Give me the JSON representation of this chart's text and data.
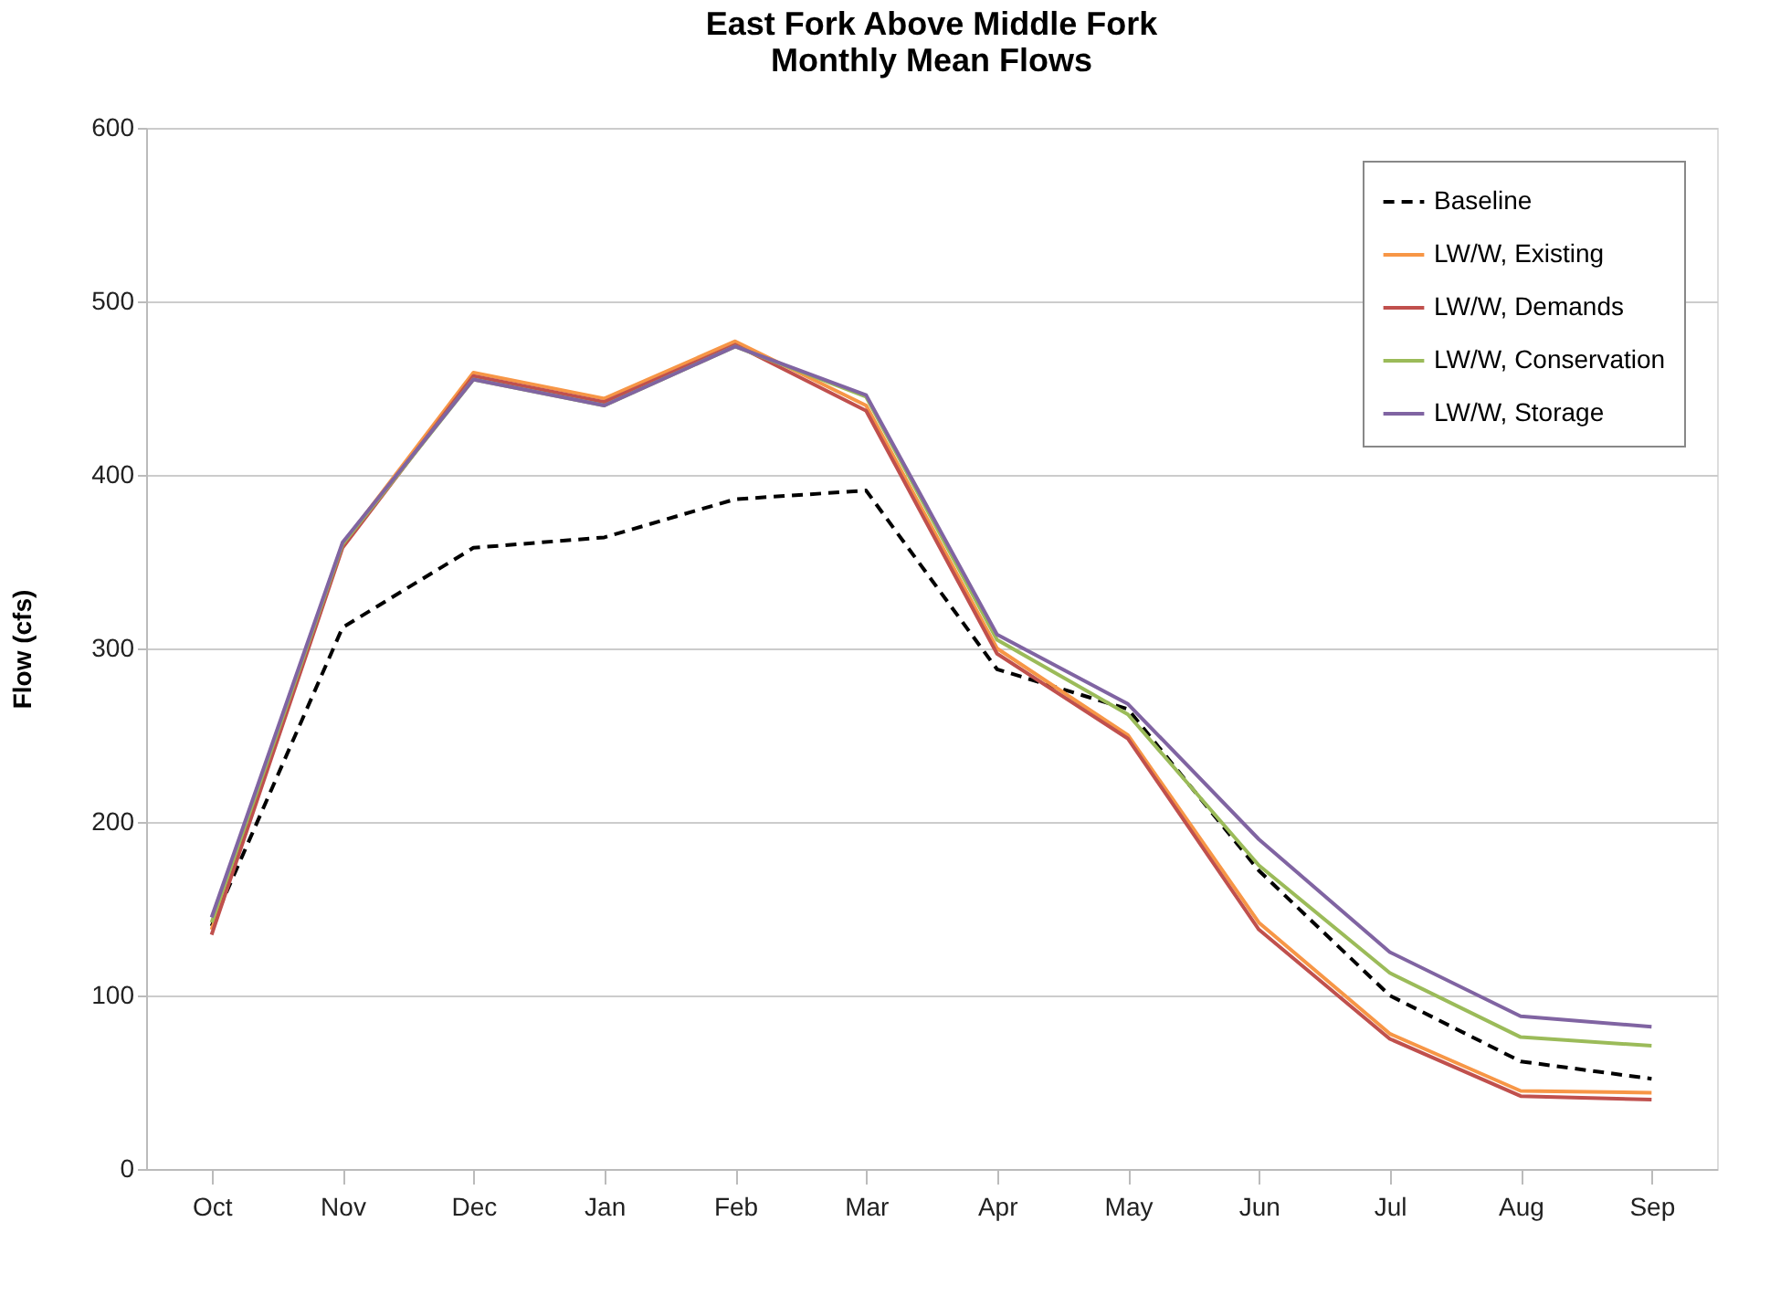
{
  "chart_data": {
    "type": "line",
    "title": [
      "East Fork Above Middle Fork",
      "Monthly Mean Flows"
    ],
    "ylabel": "Flow (cfs)",
    "categories": [
      "Oct",
      "Nov",
      "Dec",
      "Jan",
      "Feb",
      "Mar",
      "Apr",
      "May",
      "Jun",
      "Jul",
      "Aug",
      "Sep"
    ],
    "ylim": [
      0,
      600
    ],
    "yticks": [
      0,
      100,
      200,
      300,
      400,
      500,
      600
    ],
    "grid": "y",
    "legend": "top right",
    "marker": "none",
    "series": [
      {
        "name": "Baseline",
        "color": "#000000",
        "line_style": "dashed",
        "values": [
          140,
          312,
          358,
          364,
          386,
          391,
          288,
          265,
          172,
          100,
          62,
          52
        ]
      },
      {
        "name": "LW/W, Existing",
        "color": "#f79646",
        "values": [
          138,
          360,
          459,
          444,
          477,
          440,
          300,
          250,
          142,
          78,
          45,
          44
        ]
      },
      {
        "name": "LW/W, Demands",
        "color": "#c0504d",
        "values": [
          135,
          358,
          457,
          442,
          475,
          437,
          297,
          248,
          138,
          75,
          42,
          40
        ]
      },
      {
        "name": "LW/W, Conservation",
        "color": "#9bbb59",
        "values": [
          142,
          360,
          455,
          440,
          474,
          445,
          305,
          262,
          175,
          113,
          76,
          71
        ]
      },
      {
        "name": "LW/W, Storage",
        "color": "#8064a2",
        "values": [
          145,
          361,
          455,
          440,
          474,
          446,
          308,
          268,
          190,
          125,
          88,
          82
        ]
      }
    ]
  }
}
